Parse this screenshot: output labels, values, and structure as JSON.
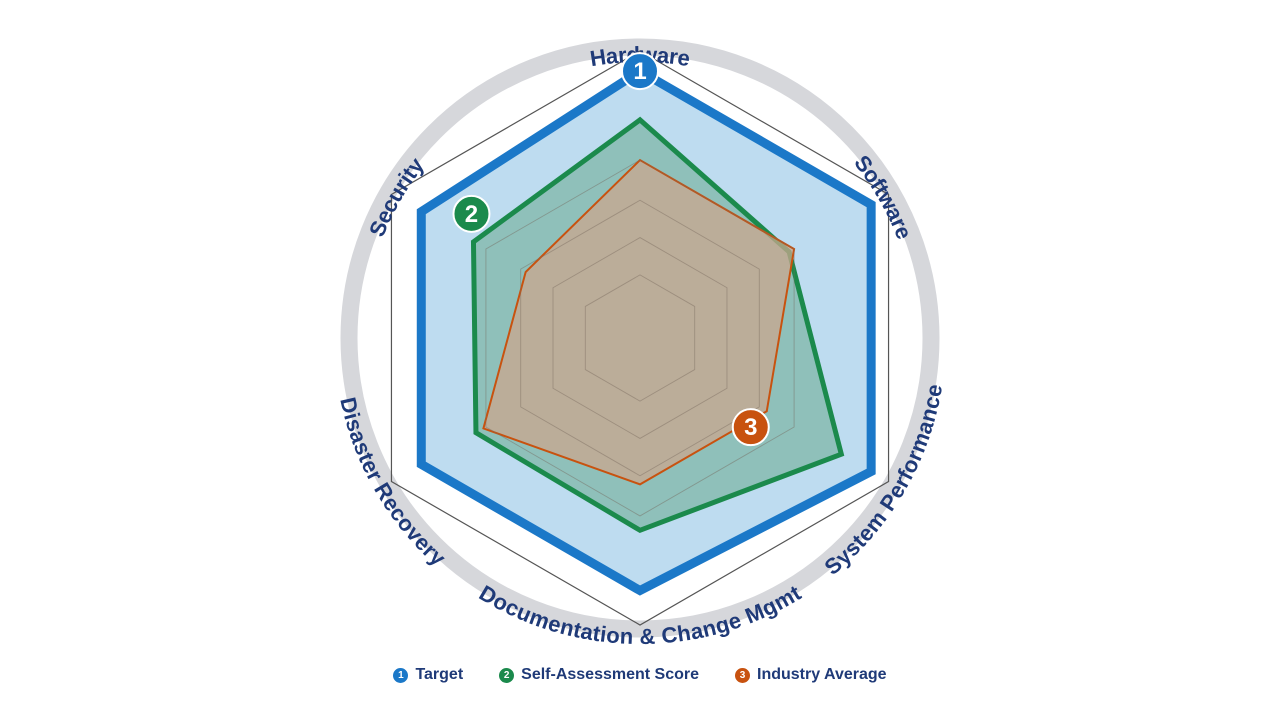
{
  "chart_data": {
    "type": "radar",
    "categories": [
      "Hardware",
      "Software",
      "System Performance",
      "Documentation & Change Mgmt",
      "Disaster Recovery",
      "Security"
    ],
    "rlim": [
      0,
      100
    ],
    "grid_rings": 5,
    "grid": true,
    "legend_position": "bottom",
    "series": [
      {
        "name": "Target",
        "marker": "1",
        "color": "#1b78c8",
        "fill": "#b7d8ee",
        "values": [
          93,
          93,
          93,
          88,
          88,
          88
        ]
      },
      {
        "name": "Self-Assessment Score",
        "marker": "2",
        "color": "#1b8a4c",
        "fill": "#7fb7a8",
        "values": [
          76,
          60,
          81,
          67,
          66,
          67
        ]
      },
      {
        "name": "Industry Average",
        "marker": "3",
        "color": "#c8520f",
        "fill": "#c9a78d",
        "values": [
          62,
          62,
          51,
          51,
          63,
          46
        ]
      }
    ]
  }
}
